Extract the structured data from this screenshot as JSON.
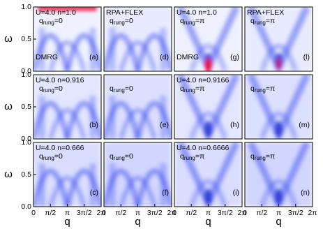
{
  "chart_data": [
    {
      "type": "heatmap",
      "params": "U=4.0 n=1.0",
      "qrung": {
        "symbol": "q",
        "sub": "rung",
        "value": "=0"
      },
      "method": "DMRG",
      "panel_label": "(a)",
      "xlim": [
        0,
        6.2832
      ],
      "ylim": [
        0,
        1
      ],
      "yticks": [
        {
          "value": 0,
          "label": "0.0"
        },
        0.5,
        {
          "value": 1,
          "label": "1.0"
        }
      ],
      "ylabel": "ω"
    },
    {
      "type": "heatmap",
      "method": "RPA+FLEX",
      "qrung": {
        "symbol": "q",
        "sub": "rung",
        "value": "=0"
      },
      "panel_label": "(d)",
      "xlim": [
        0,
        6.2832
      ],
      "ylim": [
        0,
        1
      ]
    },
    {
      "type": "heatmap",
      "params": "U=4.0 n=1.0",
      "qrung": {
        "symbol": "q",
        "sub": "rung",
        "value": "=π"
      },
      "method": "DMRG",
      "panel_label": "(g)",
      "xlim": [
        0,
        6.2832
      ],
      "ylim": [
        0,
        1
      ]
    },
    {
      "type": "heatmap",
      "method": "RPA+FLEX",
      "qrung": {
        "symbol": "q",
        "sub": "rung",
        "value": "=π"
      },
      "panel_label": "(l)",
      "xlim": [
        0,
        6.2832
      ],
      "ylim": [
        0,
        1
      ]
    },
    {
      "type": "heatmap",
      "params": "U=4.0 n=0.916",
      "qrung": {
        "symbol": "q",
        "sub": "rung",
        "value": "=0"
      },
      "panel_label": "(b)",
      "xlim": [
        0,
        6.2832
      ],
      "ylim": [
        0,
        1
      ],
      "yticks": [
        {
          "value": 0,
          "label": "0.0"
        },
        0.5,
        {
          "value": 1,
          "label": "1.0"
        }
      ],
      "ylabel": "ω"
    },
    {
      "type": "heatmap",
      "qrung": {
        "symbol": "q",
        "sub": "rung",
        "value": "=0"
      },
      "panel_label": "(e)",
      "xlim": [
        0,
        6.2832
      ],
      "ylim": [
        0,
        1
      ]
    },
    {
      "type": "heatmap",
      "params": "U=4.0 n=0.9166",
      "qrung": {
        "symbol": "q",
        "sub": "rung",
        "value": "=π"
      },
      "panel_label": "(h)",
      "xlim": [
        0,
        6.2832
      ],
      "ylim": [
        0,
        1
      ]
    },
    {
      "type": "heatmap",
      "qrung": {
        "symbol": "q",
        "sub": "rung",
        "value": "=π"
      },
      "panel_label": "(m)",
      "xlim": [
        0,
        6.2832
      ],
      "ylim": [
        0,
        1
      ]
    },
    {
      "type": "heatmap",
      "params": "U=4.0 n=0.666",
      "qrung": {
        "symbol": "q",
        "sub": "rung",
        "value": "=0"
      },
      "panel_label": "(c)",
      "xlim": [
        0,
        6.2832
      ],
      "ylim": [
        0,
        1
      ],
      "yticks": [
        {
          "value": 0,
          "label": "0.0"
        },
        0.5,
        {
          "value": 1,
          "label": "1.0"
        }
      ],
      "ylabel": "ω",
      "xticks": [
        0,
        {
          "value": 1.5708,
          "label": "π/2"
        },
        {
          "value": 3.1416,
          "label": "π"
        },
        {
          "value": 4.7124,
          "label": "3π/2"
        },
        {
          "value": 6.2832,
          "label": "2π"
        }
      ],
      "xlabel": "q"
    },
    {
      "type": "heatmap",
      "qrung": {
        "symbol": "q",
        "sub": "rung",
        "value": "=0"
      },
      "panel_label": "(f)",
      "xlim": [
        0,
        6.2832
      ],
      "ylim": [
        0,
        1
      ],
      "xticks": [
        0,
        {
          "value": 1.5708,
          "label": "π/2"
        },
        {
          "value": 3.1416,
          "label": "π"
        },
        {
          "value": 4.7124,
          "label": "3π/2"
        },
        {
          "value": 6.2832,
          "label": "2π"
        }
      ],
      "xlabel": "q"
    },
    {
      "type": "heatmap",
      "params": "U=4.0 n=0.6666",
      "qrung": {
        "symbol": "q",
        "sub": "rung",
        "value": "=π"
      },
      "panel_label": "(i)",
      "xlim": [
        0,
        6.2832
      ],
      "ylim": [
        0,
        1
      ],
      "xticks": [
        0,
        {
          "value": 1.5708,
          "label": "π/2"
        },
        {
          "value": 3.1416,
          "label": "π"
        },
        {
          "value": 4.7124,
          "label": "3π/2"
        },
        {
          "value": 6.2832,
          "label": "2π"
        }
      ],
      "xlabel": "q"
    },
    {
      "type": "heatmap",
      "qrung": {
        "symbol": "q",
        "sub": "rung",
        "value": "=π"
      },
      "panel_label": "(n)",
      "xlim": [
        0,
        6.2832
      ],
      "ylim": [
        0,
        1
      ],
      "xticks": [
        0,
        {
          "value": 1.5708,
          "label": "π/2"
        },
        {
          "value": 3.1416,
          "label": "π"
        },
        {
          "value": 4.7124,
          "label": "3π/2"
        },
        {
          "value": 6.2832,
          "label": "2π"
        }
      ],
      "xlabel": "q"
    }
  ]
}
